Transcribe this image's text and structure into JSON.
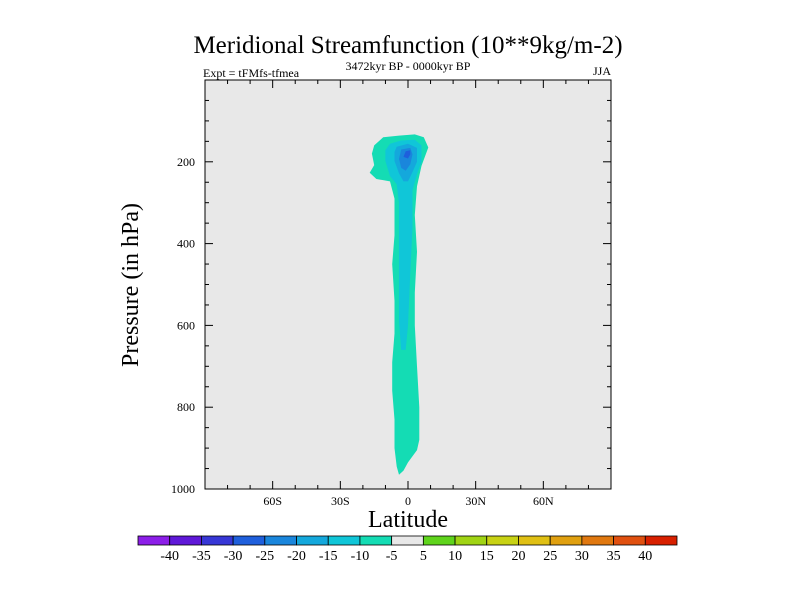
{
  "chart_data": {
    "type": "contour",
    "title": "Meridional Streamfunction (10**9kg/m-2)",
    "subtitle_left": "Expt = tFMfs-tfmea",
    "subtitle_center": "3472kyr BP - 0000kyr BP",
    "subtitle_right": "JJA",
    "xlabel": "Latitude",
    "ylabel": "Pressure (in hPa)",
    "xlim": [
      -90,
      90
    ],
    "ylim": [
      1000,
      0
    ],
    "x_ticks": [
      {
        "value": -60,
        "label": "60S"
      },
      {
        "value": -30,
        "label": "30S"
      },
      {
        "value": 0,
        "label": "0"
      },
      {
        "value": 30,
        "label": "30N"
      },
      {
        "value": 60,
        "label": "60N"
      }
    ],
    "y_ticks": [
      {
        "value": 200,
        "label": "200"
      },
      {
        "value": 400,
        "label": "400"
      },
      {
        "value": 600,
        "label": "600"
      },
      {
        "value": 800,
        "label": "800"
      },
      {
        "value": 1000,
        "label": "1000"
      }
    ],
    "background_color": "#e8e8e8",
    "contour_levels": [
      "-40",
      "-35",
      "-30",
      "-25",
      "-20",
      "-15",
      "-10",
      "-5",
      "5",
      "10",
      "15",
      "20",
      "25",
      "30",
      "35",
      "40"
    ],
    "colorbar_colors": [
      "#8c1ee8",
      "#5f18d8",
      "#3737d6",
      "#1f5fdc",
      "#1a86dc",
      "#14a8dc",
      "#10c6d8",
      "#14dcb4",
      "#e8e8e8",
      "#5fd41c",
      "#a0d414",
      "#c8d214",
      "#e0c014",
      "#e0a010",
      "#e07810",
      "#e05010",
      "#d82000"
    ],
    "filled_regions": [
      {
        "level": "-10 to -5",
        "color": "#14dcb4",
        "outline": [
          [
            -11,
            140
          ],
          [
            -4,
            136
          ],
          [
            3,
            133
          ],
          [
            7,
            140
          ],
          [
            9,
            165
          ],
          [
            6,
            210
          ],
          [
            4,
            260
          ],
          [
            3,
            330
          ],
          [
            4,
            420
          ],
          [
            3,
            520
          ],
          [
            3,
            600
          ],
          [
            4,
            700
          ],
          [
            5,
            800
          ],
          [
            5,
            880
          ],
          [
            4,
            905
          ],
          [
            0,
            935
          ],
          [
            -2,
            955
          ],
          [
            -4,
            965
          ],
          [
            -5,
            945
          ],
          [
            -6,
            900
          ],
          [
            -6,
            830
          ],
          [
            -7,
            760
          ],
          [
            -7,
            690
          ],
          [
            -6,
            620
          ],
          [
            -6,
            540
          ],
          [
            -7,
            450
          ],
          [
            -6,
            380
          ],
          [
            -6,
            290
          ],
          [
            -8,
            248
          ],
          [
            -14,
            242
          ],
          [
            -17,
            227
          ],
          [
            -15,
            208
          ],
          [
            -16,
            180
          ],
          [
            -15,
            160
          ]
        ]
      },
      {
        "level": "-15 to -10",
        "color": "#10c6d8",
        "outline": [
          [
            -8,
            156
          ],
          [
            -3,
            148
          ],
          [
            3,
            146
          ],
          [
            6,
            160
          ],
          [
            6,
            200
          ],
          [
            4,
            230
          ],
          [
            2,
            270
          ],
          [
            2,
            360
          ],
          [
            1,
            470
          ],
          [
            0,
            600
          ],
          [
            -1,
            660
          ],
          [
            -3,
            660
          ],
          [
            -4,
            590
          ],
          [
            -4,
            480
          ],
          [
            -4,
            380
          ],
          [
            -4,
            300
          ],
          [
            -5,
            255
          ],
          [
            -8,
            235
          ],
          [
            -10,
            198
          ],
          [
            -10,
            172
          ]
        ]
      },
      {
        "level": "-20 to -15",
        "color": "#14a8dc",
        "outline": [
          [
            -5,
            163
          ],
          [
            0,
            156
          ],
          [
            4,
            166
          ],
          [
            4,
            200
          ],
          [
            2,
            225
          ],
          [
            0,
            248
          ],
          [
            -2,
            248
          ],
          [
            -4,
            228
          ],
          [
            -6,
            198
          ],
          [
            -6,
            176
          ]
        ]
      },
      {
        "level": "-25 to -20",
        "color": "#1a86dc",
        "outline": [
          [
            -3,
            170
          ],
          [
            1,
            166
          ],
          [
            2,
            182
          ],
          [
            1,
            206
          ],
          [
            -1,
            222
          ],
          [
            -3,
            215
          ],
          [
            -4,
            193
          ]
        ]
      },
      {
        "level": "-30 to -25",
        "color": "#1f5fdc",
        "outline": [
          [
            -1,
            174
          ],
          [
            1,
            172
          ],
          [
            1,
            182
          ],
          [
            0,
            192
          ],
          [
            -2,
            188
          ]
        ]
      }
    ]
  }
}
